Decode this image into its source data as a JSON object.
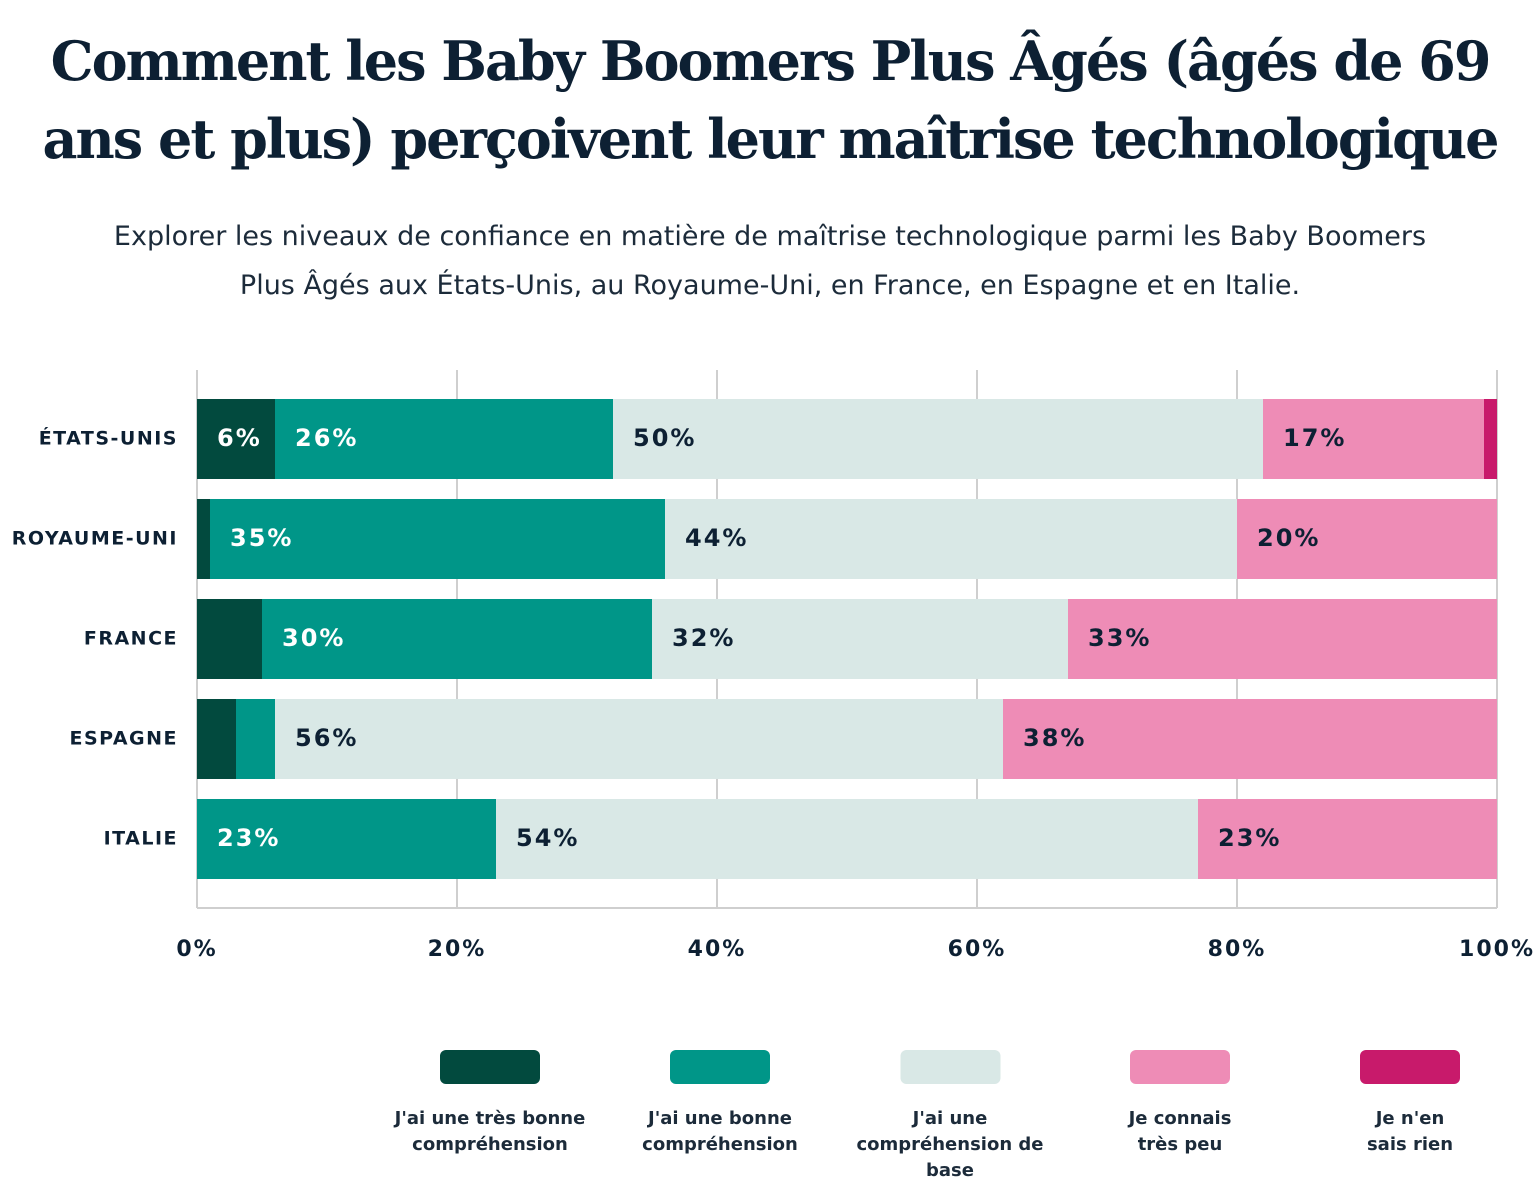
{
  "chart_data": {
    "type": "stacked-barh",
    "title": "Comment les Baby Boomers Plus Âgés (âgés de 69 ans et plus) perçoivent leur maîtrise technologique",
    "subtitle": "Explorer les niveaux de confiance en matière de maîtrise technologique parmi les Baby Boomers Plus Âgés aux États-Unis, au Royaume-Uni, en France, en Espagne et en Italie.",
    "categories": [
      "ÉTATS-UNIS",
      "ROYAUME-UNI",
      "FRANCE",
      "ESPAGNE",
      "ITALIE"
    ],
    "series": [
      {
        "name": "J'ai une très bonne compréhension",
        "color": "#024a3e",
        "values": [
          6,
          1,
          5,
          3,
          0
        ],
        "value_labels": [
          "6%",
          null,
          null,
          null,
          null
        ]
      },
      {
        "name": "J'ai une bonne compréhension",
        "color": "#009688",
        "values": [
          26,
          35,
          30,
          3,
          23
        ],
        "value_labels": [
          "26%",
          "35%",
          "30%",
          null,
          "23%"
        ]
      },
      {
        "name": "J'ai une compréhension de base",
        "color": "#d9e8e6",
        "values": [
          50,
          44,
          32,
          56,
          54
        ],
        "value_labels": [
          "50%",
          "44%",
          "32%",
          "56%",
          "54%"
        ]
      },
      {
        "name": "Je connais très peu",
        "color": "#ee8cb6",
        "values": [
          17,
          20,
          33,
          38,
          23
        ],
        "value_labels": [
          "17%",
          "20%",
          "33%",
          "38%",
          "23%"
        ]
      },
      {
        "name": "Je n'en sais rien",
        "color": "#c81a6b",
        "values": [
          1,
          0,
          0,
          0,
          0
        ]
      }
    ],
    "xlim": [
      0,
      100
    ],
    "xticks": [
      {
        "value": 0,
        "label": "0%"
      },
      {
        "value": 20,
        "label": "20%"
      },
      {
        "value": 40,
        "label": "40%"
      },
      {
        "value": 60,
        "label": "60%"
      },
      {
        "value": 80,
        "label": "80%"
      },
      {
        "value": 100,
        "label": "100%"
      }
    ],
    "grid": true
  }
}
